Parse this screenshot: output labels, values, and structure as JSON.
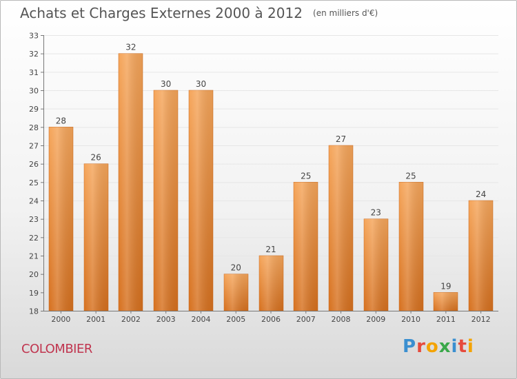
{
  "header": {
    "title": "Achats et Charges Externes 2000 à 2012",
    "subtitle": "(en milliers d'€)"
  },
  "footer": {
    "commune": "COLOMBIER",
    "logo": "Proxiti",
    "logo_colors": [
      "#3a8fd0",
      "#e64a3c",
      "#f4a300",
      "#3aa84a",
      "#3a8fd0",
      "#e64a3c",
      "#f4a300"
    ]
  },
  "colors": {
    "bar_light": "#f5a55a",
    "bar_dark": "#d6701e",
    "grid": "#e6e6e6",
    "axis": "#777777",
    "text": "#444444"
  },
  "chart_data": {
    "type": "bar",
    "categories": [
      "2000",
      "2001",
      "2002",
      "2003",
      "2004",
      "2005",
      "2006",
      "2007",
      "2008",
      "2009",
      "2010",
      "2011",
      "2012"
    ],
    "values": [
      28,
      26,
      32,
      30,
      30,
      20,
      21,
      25,
      27,
      23,
      25,
      19,
      24
    ],
    "value_labels": [
      "28",
      "26",
      "32",
      "30",
      "30",
      "20",
      "21",
      "25",
      "27",
      "23",
      "25",
      "19",
      "24"
    ],
    "ylim": [
      18,
      33
    ],
    "yticks": [
      "18",
      "19",
      "20",
      "21",
      "22",
      "23",
      "24",
      "25",
      "26",
      "27",
      "28",
      "29",
      "30",
      "31",
      "32",
      "33"
    ],
    "grid": true,
    "title": "Achats et Charges Externes 2000 à 2012",
    "xlabel": "",
    "ylabel": ""
  }
}
